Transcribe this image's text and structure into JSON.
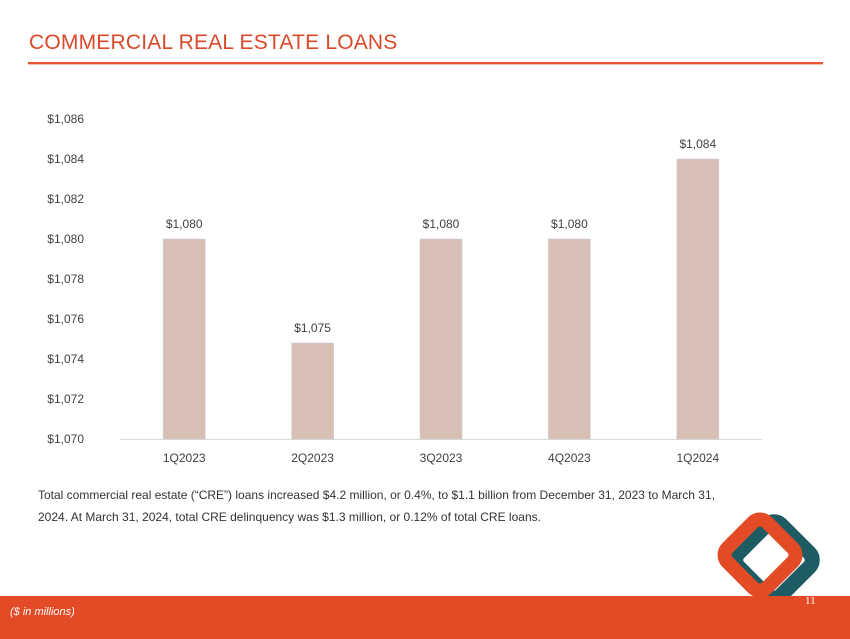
{
  "header": {
    "title": "COMMERCIAL REAL ESTATE LOANS"
  },
  "colors": {
    "accent": "#e34a26",
    "bar": "#d8bfb6",
    "logo_teal": "#1d5c63"
  },
  "chart_data": {
    "type": "bar",
    "categories": [
      "1Q2023",
      "2Q2023",
      "3Q2023",
      "4Q2023",
      "1Q2024"
    ],
    "values": [
      1080,
      1074.8,
      1080,
      1080,
      1084
    ],
    "data_labels": [
      "$1,080",
      "$1,075",
      "$1,080",
      "$1,080",
      "$1,084"
    ],
    "ylim": [
      1070,
      1086
    ],
    "yticks": [
      1070,
      1072,
      1074,
      1076,
      1078,
      1080,
      1082,
      1084,
      1086
    ],
    "ytick_labels": [
      "$1,070",
      "$1,072",
      "$1,074",
      "$1,076",
      "$1,078",
      "$1,080",
      "$1,082",
      "$1,084",
      "$1,086"
    ],
    "title": "",
    "xlabel": "",
    "ylabel": "",
    "grid": false
  },
  "commentary": "Total commercial real estate (“CRE”) loans increased $4.2 million, or 0.4%, to $1.1 billion from December 31, 2023 to March 31, 2024. At March 31, 2024, total CRE delinquency was $1.3 million, or 0.12% of total CRE loans.",
  "footer": {
    "note": "($ in millions)",
    "page_number": "11"
  },
  "logo": {
    "icon": "diamond-logo-icon"
  }
}
